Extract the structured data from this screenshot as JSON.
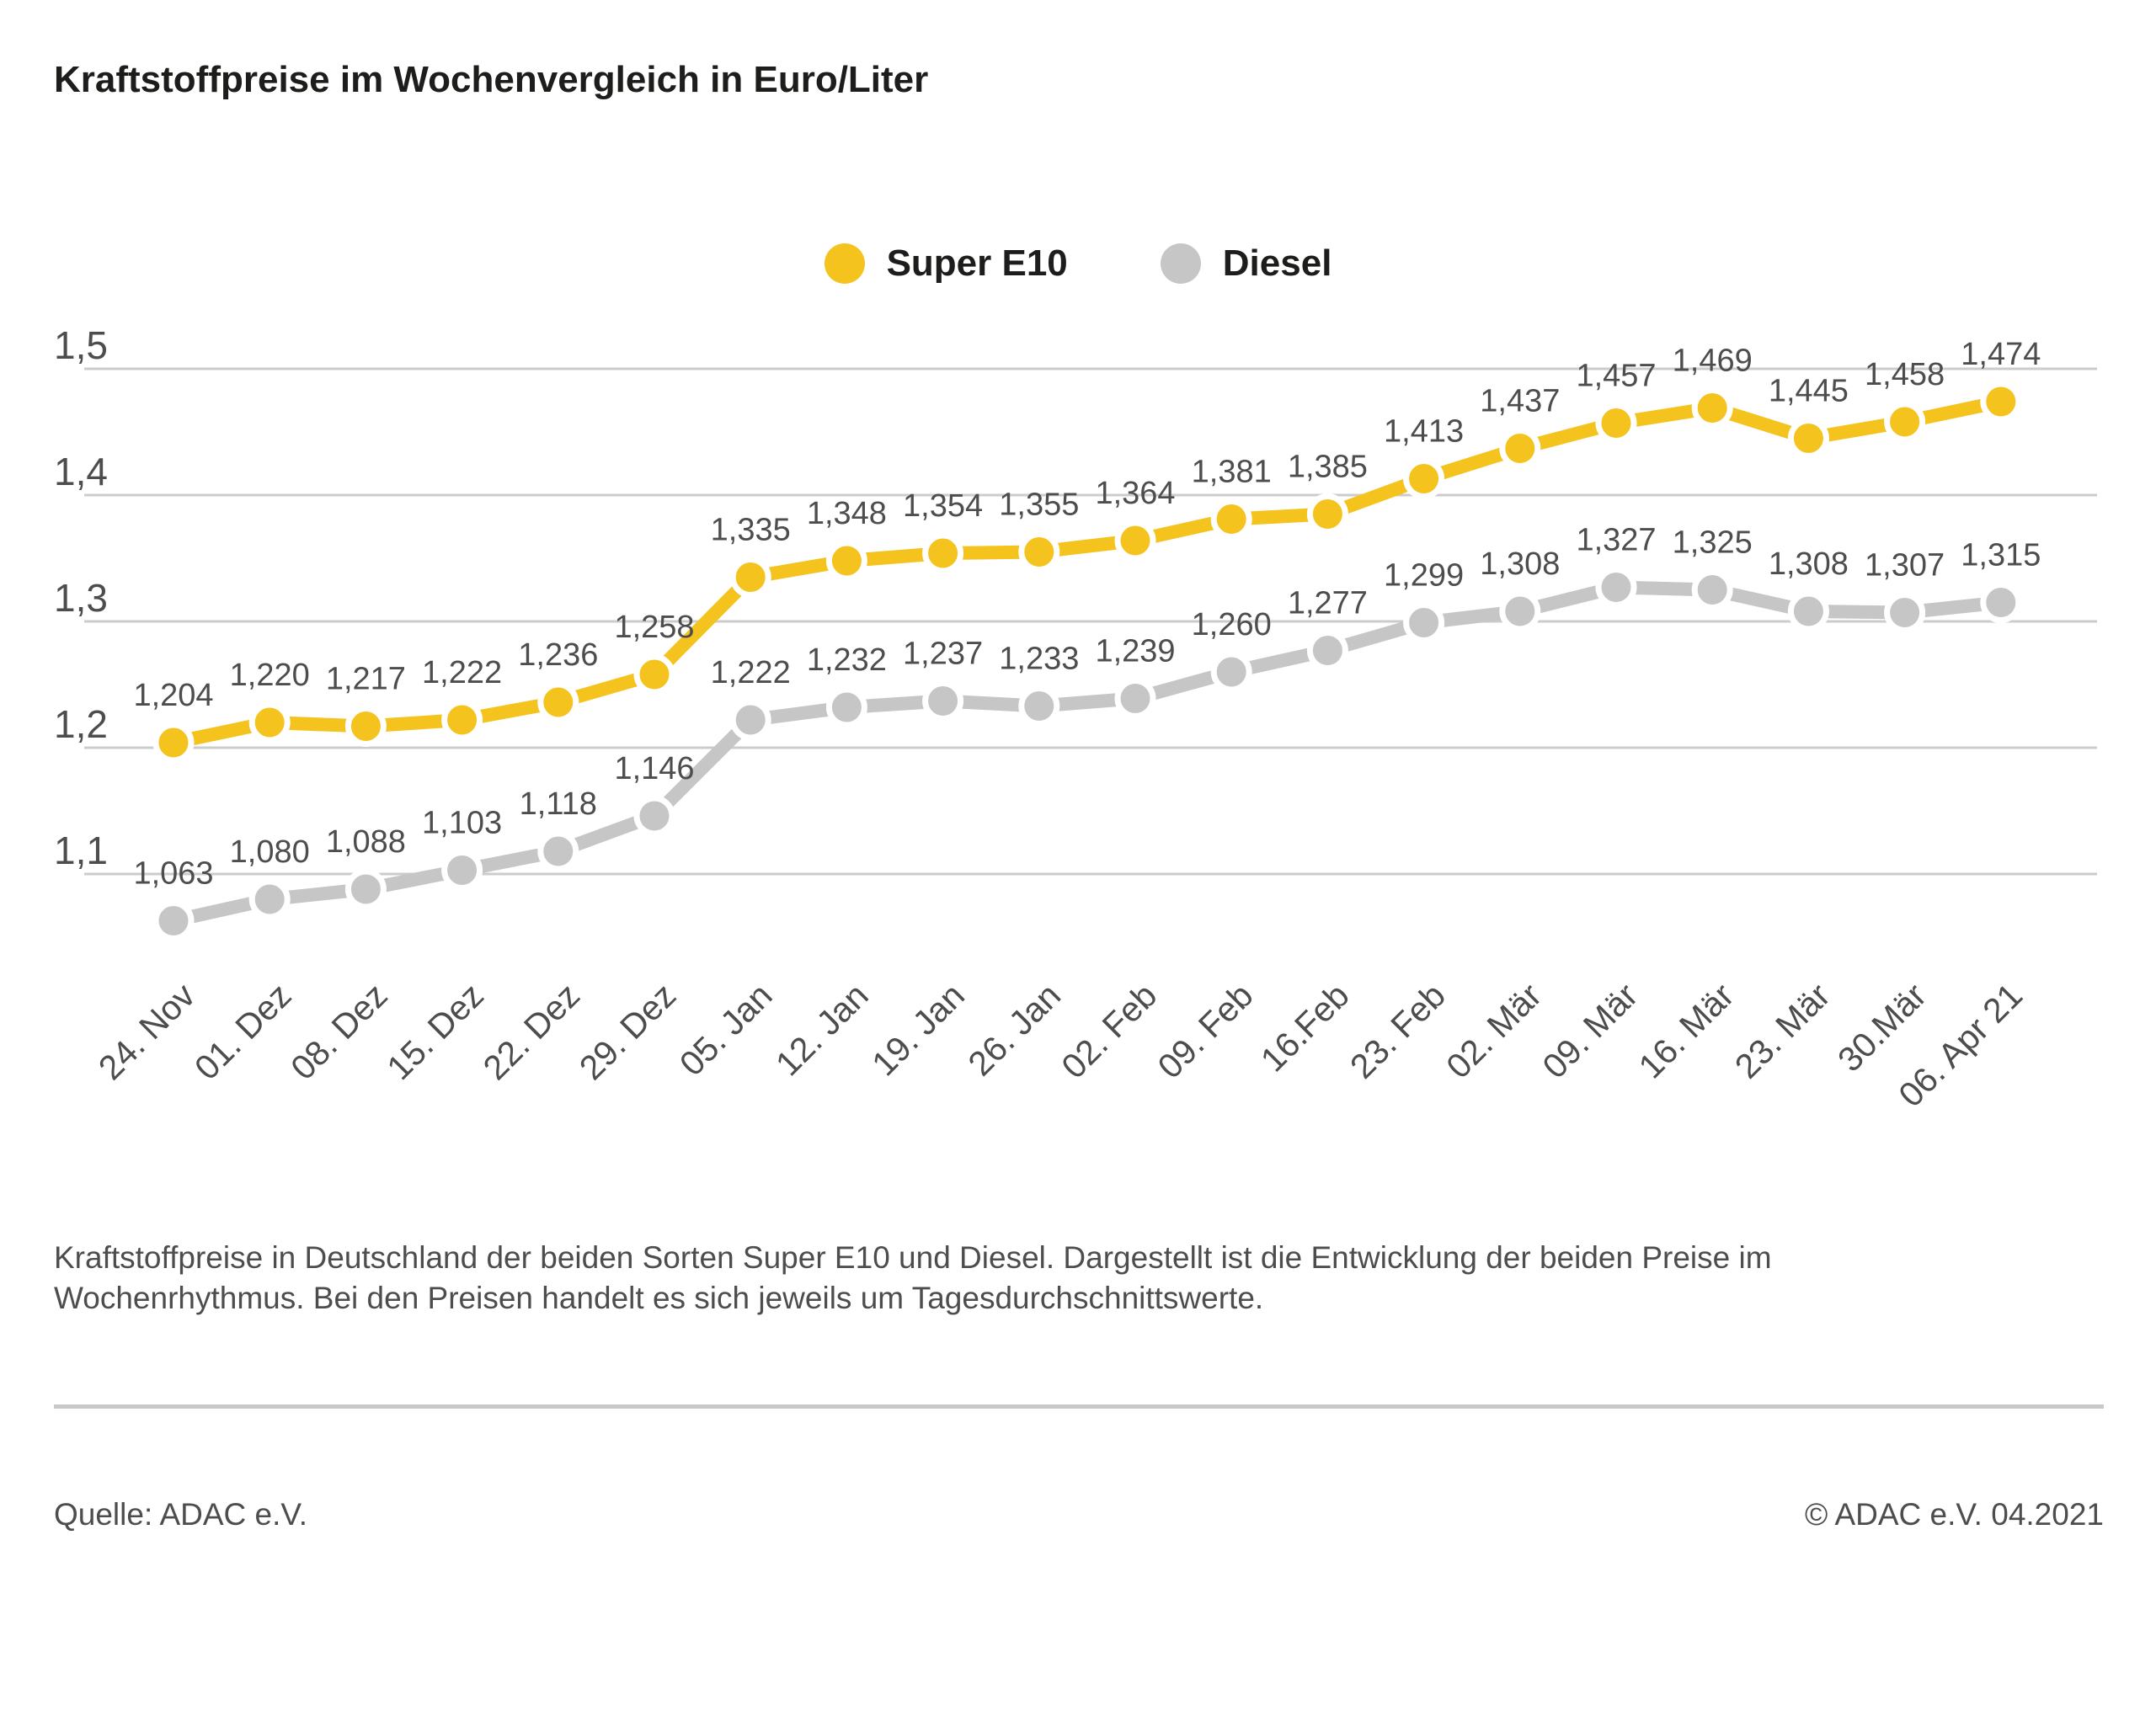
{
  "title": "Kraftstoffpreise im Wochenvergleich in Euro/Liter",
  "colors": {
    "super_e10": "#f5c31e",
    "diesel": "#c6c6c6",
    "grid": "#cccccc",
    "label_text": "#4d4d4d",
    "title_text": "#1d1d1b"
  },
  "chart_data": {
    "type": "line",
    "title": "Kraftstoffpreise im Wochenvergleich in Euro/Liter",
    "xlabel": "",
    "ylabel": "Euro/Liter",
    "grid": true,
    "legend_position": "top-center",
    "ylim": [
      1.05,
      1.5
    ],
    "yticks": [
      {
        "value": 1.5,
        "label": "1,5"
      },
      {
        "value": 1.4,
        "label": "1,4"
      },
      {
        "value": 1.3,
        "label": "1,3"
      },
      {
        "value": 1.2,
        "label": "1,2"
      },
      {
        "value": 1.1,
        "label": "1,1"
      }
    ],
    "categories": [
      "24. Nov",
      "01. Dez",
      "08. Dez",
      "15. Dez",
      "22. Dez",
      "29. Dez",
      "05. Jan",
      "12. Jan",
      "19. Jan",
      "26. Jan",
      "02. Feb",
      "09. Feb",
      "16.Feb",
      "23. Feb",
      "02. Mär",
      "09. Mär",
      "16. Mär",
      "23. Mär",
      "30.Mär",
      "06. Apr 21"
    ],
    "series": [
      {
        "name": "Diesel",
        "color": "#c6c6c6",
        "values": [
          1.063,
          1.08,
          1.088,
          1.103,
          1.118,
          1.146,
          1.222,
          1.232,
          1.237,
          1.233,
          1.239,
          1.26,
          1.277,
          1.299,
          1.308,
          1.327,
          1.325,
          1.308,
          1.307,
          1.315
        ],
        "labels": [
          "1,063",
          "1,080",
          "1,088",
          "1,103",
          "1,118",
          "1,146",
          "1,222",
          "1,232",
          "1,237",
          "1,233",
          "1,239",
          "1,260",
          "1,277",
          "1,299",
          "1,308",
          "1,327",
          "1,325",
          "1,308",
          "1,307",
          "1,315"
        ]
      },
      {
        "name": "Super E10",
        "color": "#f5c31e",
        "values": [
          1.204,
          1.22,
          1.217,
          1.222,
          1.236,
          1.258,
          1.335,
          1.348,
          1.354,
          1.355,
          1.364,
          1.381,
          1.385,
          1.413,
          1.437,
          1.457,
          1.469,
          1.445,
          1.458,
          1.474
        ],
        "labels": [
          "1,204",
          "1,220",
          "1,217",
          "1,222",
          "1,236",
          "1,258",
          "1,335",
          "1,348",
          "1,354",
          "1,355",
          "1,364",
          "1,381",
          "1,385",
          "1,413",
          "1,437",
          "1,457",
          "1,469",
          "1,445",
          "1,458",
          "1,474"
        ]
      }
    ]
  },
  "legend": {
    "super_e10_label": "Super E10",
    "diesel_label": "Diesel"
  },
  "description": {
    "line1": "Kraftstoffpreise in Deutschland der beiden Sorten Super E10 und Diesel. Dargestellt ist die Entwicklung der beiden Preise im",
    "line2": "Wochenrhythmus. Bei den Preisen handelt es sich jeweils um Tagesdurchschnittswerte."
  },
  "footer": {
    "source": "Quelle: ADAC e.V.",
    "copyright": "© ADAC e.V. 04.2021"
  }
}
